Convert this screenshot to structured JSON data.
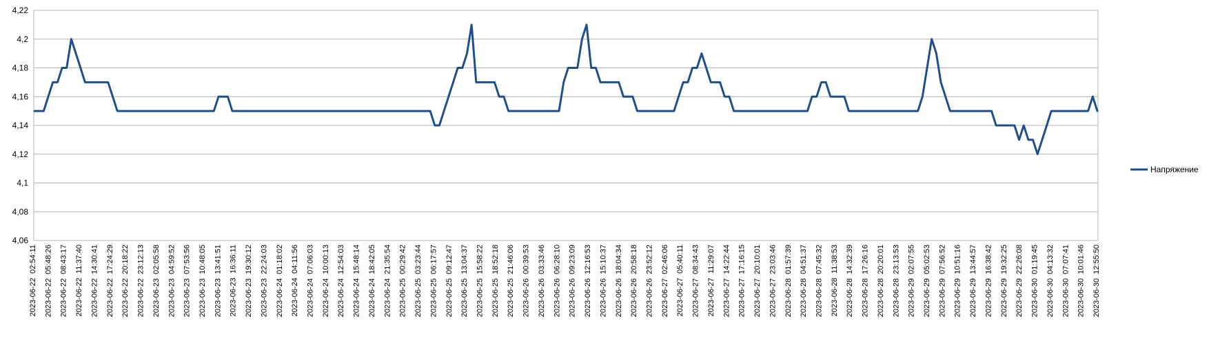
{
  "chart_data": {
    "type": "line",
    "title": "",
    "xlabel": "",
    "ylabel": "",
    "ylim": [
      4.06,
      4.22
    ],
    "ytick_labels": [
      "4,06",
      "4,08",
      "4,1",
      "4,12",
      "4,14",
      "4,16",
      "4,18",
      "4,2",
      "4,22"
    ],
    "grid": "horizontal",
    "legend_position": "right",
    "series_color": "#1F4E8C",
    "x_tick_labels": [
      "2023-06-22  02:54:11",
      "2023-06-22  05:48:26",
      "2023-06-22  08:43:17",
      "2023-06-22  11:37:40",
      "2023-06-22  14:30:41",
      "2023-06-22  17:24:29",
      "2023-06-22  20:18:22",
      "2023-06-22  23:12:13",
      "2023-06-23  02:05:58",
      "2023-06-23  04:59:52",
      "2023-06-23  07:53:56",
      "2023-06-23  10:48:05",
      "2023-06-23  13:41:51",
      "2023-06-23  16:36:11",
      "2023-06-23  19:30:12",
      "2023-06-23  22:24:03",
      "2023-06-24  01:18:02",
      "2023-06-24  04:11:56",
      "2023-06-24  07:06:03",
      "2023-06-24  10:00:13",
      "2023-06-24  12:54:03",
      "2023-06-24  15:48:14",
      "2023-06-24  18:42:05",
      "2023-06-24  21:35:54",
      "2023-06-25  00:29:42",
      "2023-06-25  03:23:44",
      "2023-06-25  06:17:57",
      "2023-06-25  09:12:47",
      "2023-06-25  13:04:37",
      "2023-06-25  15:58:22",
      "2023-06-25  18:52:18",
      "2023-06-25  21:46:06",
      "2023-06-26  00:39:53",
      "2023-06-26  03:33:46",
      "2023-06-26  06:28:10",
      "2023-06-26  09:23:09",
      "2023-06-26  12:16:53",
      "2023-06-26  15:10:37",
      "2023-06-26  18:04:34",
      "2023-06-26  20:58:18",
      "2023-06-26  23:52:12",
      "2023-06-27  02:46:06",
      "2023-06-27  05:40:11",
      "2023-06-27  08:34:43",
      "2023-06-27  11:29:07",
      "2023-06-27  14:22:44",
      "2023-06-27  17:16:15",
      "2023-06-27  20:10:01",
      "2023-06-27  23:03:46",
      "2023-06-28  01:57:39",
      "2023-06-28  04:51:37",
      "2023-06-28  07:45:32",
      "2023-06-28  11:38:53",
      "2023-06-28  14:32:39",
      "2023-06-28  17:26:16",
      "2023-06-28  20:20:01",
      "2023-06-28  23:13:53",
      "2023-06-29  02:07:55",
      "2023-06-29  05:02:53",
      "2023-06-29  07:56:52",
      "2023-06-29  10:51:16",
      "2023-06-29  13:44:57",
      "2023-06-29  16:38:42",
      "2023-06-29  19:32:25",
      "2023-06-29  22:26:08",
      "2023-06-30  01:19:45",
      "2023-06-30  04:13:32",
      "2023-06-30  07:07:41",
      "2023-06-30  10:01:46",
      "2023-06-30  12:55:50"
    ],
    "series": [
      {
        "name": "Напряжение",
        "values": [
          4.15,
          4.15,
          4.15,
          4.16,
          4.17,
          4.17,
          4.18,
          4.18,
          4.2,
          4.19,
          4.18,
          4.17,
          4.17,
          4.17,
          4.17,
          4.17,
          4.17,
          4.16,
          4.15,
          4.15,
          4.15,
          4.15,
          4.15,
          4.15,
          4.15,
          4.15,
          4.15,
          4.15,
          4.15,
          4.15,
          4.15,
          4.15,
          4.15,
          4.15,
          4.15,
          4.15,
          4.15,
          4.15,
          4.15,
          4.15,
          4.16,
          4.16,
          4.16,
          4.15,
          4.15,
          4.15,
          4.15,
          4.15,
          4.15,
          4.15,
          4.15,
          4.15,
          4.15,
          4.15,
          4.15,
          4.15,
          4.15,
          4.15,
          4.15,
          4.15,
          4.15,
          4.15,
          4.15,
          4.15,
          4.15,
          4.15,
          4.15,
          4.15,
          4.15,
          4.15,
          4.15,
          4.15,
          4.15,
          4.15,
          4.15,
          4.15,
          4.15,
          4.15,
          4.15,
          4.15,
          4.15,
          4.15,
          4.15,
          4.15,
          4.15,
          4.15,
          4.15,
          4.14,
          4.14,
          4.15,
          4.16,
          4.17,
          4.18,
          4.18,
          4.19,
          4.21,
          4.17,
          4.17,
          4.17,
          4.17,
          4.17,
          4.16,
          4.16,
          4.15,
          4.15,
          4.15,
          4.15,
          4.15,
          4.15,
          4.15,
          4.15,
          4.15,
          4.15,
          4.15,
          4.15,
          4.17,
          4.18,
          4.18,
          4.18,
          4.2,
          4.21,
          4.18,
          4.18,
          4.17,
          4.17,
          4.17,
          4.17,
          4.17,
          4.16,
          4.16,
          4.16,
          4.15,
          4.15,
          4.15,
          4.15,
          4.15,
          4.15,
          4.15,
          4.15,
          4.15,
          4.16,
          4.17,
          4.17,
          4.18,
          4.18,
          4.19,
          4.18,
          4.17,
          4.17,
          4.17,
          4.16,
          4.16,
          4.15,
          4.15,
          4.15,
          4.15,
          4.15,
          4.15,
          4.15,
          4.15,
          4.15,
          4.15,
          4.15,
          4.15,
          4.15,
          4.15,
          4.15,
          4.15,
          4.15,
          4.16,
          4.16,
          4.17,
          4.17,
          4.16,
          4.16,
          4.16,
          4.16,
          4.15,
          4.15,
          4.15,
          4.15,
          4.15,
          4.15,
          4.15,
          4.15,
          4.15,
          4.15,
          4.15,
          4.15,
          4.15,
          4.15,
          4.15,
          4.15,
          4.16,
          4.18,
          4.2,
          4.19,
          4.17,
          4.16,
          4.15,
          4.15,
          4.15,
          4.15,
          4.15,
          4.15,
          4.15,
          4.15,
          4.15,
          4.15,
          4.14,
          4.14,
          4.14,
          4.14,
          4.14,
          4.13,
          4.14,
          4.13,
          4.13,
          4.12,
          4.13,
          4.14,
          4.15,
          4.15,
          4.15,
          4.15,
          4.15,
          4.15,
          4.15,
          4.15,
          4.15,
          4.16,
          4.15
        ]
      }
    ]
  }
}
